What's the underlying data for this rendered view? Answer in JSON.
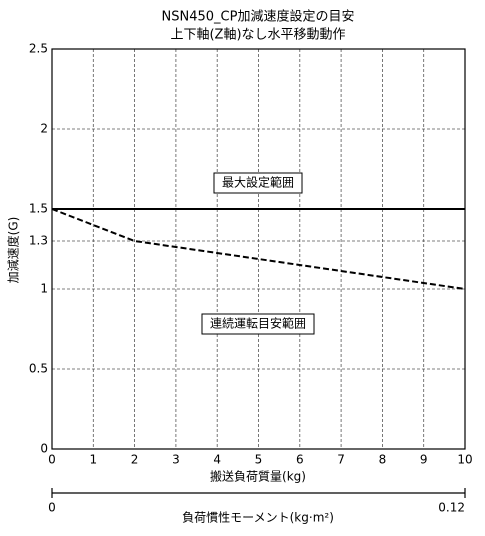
{
  "chart_data": {
    "type": "line",
    "title": "NSN450_CP加減速度設定の目安",
    "subtitle": "上下軸(Z軸)なし水平移動動作",
    "x_label": "搬送負荷質量(kg)",
    "y_label": "加減速度(G)",
    "xlim": [
      0,
      10
    ],
    "xticks": [
      0,
      1,
      2,
      3,
      4,
      5,
      6,
      7,
      8,
      9,
      10
    ],
    "ylim": [
      0,
      2.5
    ],
    "yticks": [
      0,
      0.5,
      1,
      1.3,
      1.5,
      2,
      2.5
    ],
    "grid": true,
    "series": [
      {
        "x": [
          0,
          10
        ],
        "values": [
          1.5,
          1.5
        ],
        "color": "#000000",
        "style": "solid"
      },
      {
        "x": [
          0,
          2,
          10
        ],
        "values": [
          1.5,
          1.3,
          1.0
        ],
        "color": "#000000",
        "style": "dashed"
      }
    ],
    "annotations": [
      "最大設定範囲",
      "連続運転目安範囲"
    ],
    "x2_label": "負荷慣性モーメント(kg·m²)",
    "x2lim": [
      0,
      0.12
    ],
    "x2ticks": [
      0,
      0.12
    ]
  }
}
